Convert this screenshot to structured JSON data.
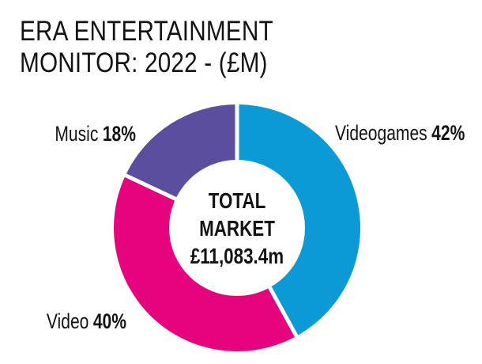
{
  "title": {
    "line1": "ERA ENTERTAINMENT",
    "line2": "MONITOR: 2022 - (£M)"
  },
  "chart_data": {
    "type": "pie",
    "subtype": "donut",
    "title": "ERA ENTERTAINMENT MONITOR: 2022 - (£M)",
    "categories": [
      "Videogames",
      "Video",
      "Music"
    ],
    "values": [
      42,
      40,
      18
    ],
    "unit": "%",
    "colors": [
      "#0B9AD6",
      "#E5047E",
      "#5C4E9E"
    ],
    "start_angle_deg": 0,
    "direction": "clockwise",
    "gap_color": "#FFFFFF",
    "center_text": [
      "TOTAL",
      "MARKET",
      "£11,083.4m"
    ],
    "segments": [
      {
        "name": "Videogames",
        "pct": "42%",
        "value": 42,
        "color": "#0B9AD6"
      },
      {
        "name": "Video",
        "pct": "40%",
        "value": 40,
        "color": "#E5047E"
      },
      {
        "name": "Music",
        "pct": "18%",
        "value": 18,
        "color": "#5C4E9E"
      }
    ],
    "legend_position": "callouts-around-donut",
    "text_color": "#131313",
    "background_color": "#FFFFFF"
  }
}
